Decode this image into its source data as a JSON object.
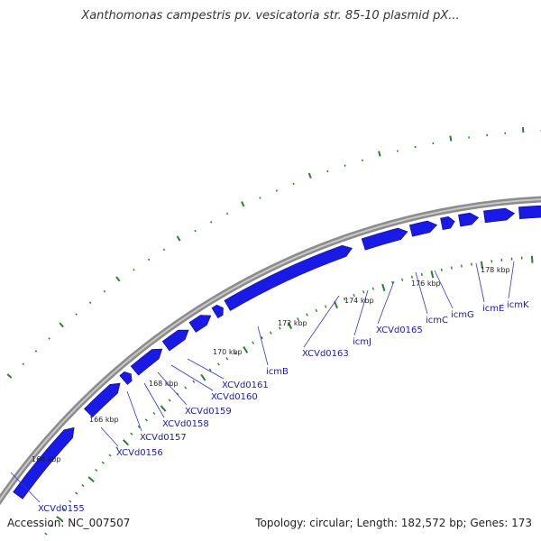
{
  "title": "Xanthomonas campestris pv. vesicatoria str. 85-10 plasmid pX...",
  "accession": "Accession: NC_007507",
  "summary": "Topology: circular; Length: 182,572 bp; Genes: 173",
  "colors": {
    "backbone": "#8c8c8c",
    "gene": "#1a1ae6",
    "gene_edge": "#0a0a80",
    "ticks": "#2e7d32",
    "label": "#1a1aa8",
    "leader": "#3333cc"
  },
  "tick_labels": [
    "164 kbp",
    "166 kbp",
    "168 kbp",
    "170 kbp",
    "172 kbp",
    "174 kbp",
    "176 kbp",
    "178 kbp"
  ],
  "gene_labels": [
    "XCVd0155",
    "XCVd0156",
    "XCVd0157",
    "XCVd0158",
    "XCVd0159",
    "XCVd0160",
    "XCVd0161",
    "icmB",
    "XCVd0163",
    "icmJ",
    "XCVd0165",
    "icmC",
    "icmG",
    "icmE",
    "icmK"
  ]
}
